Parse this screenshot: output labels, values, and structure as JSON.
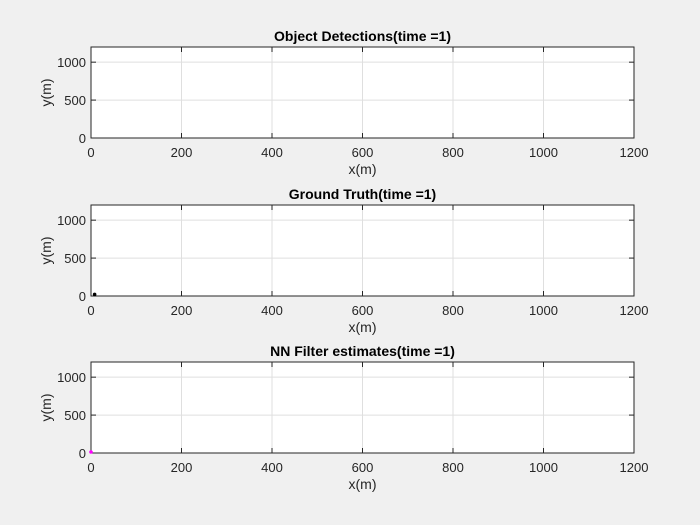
{
  "chart_data": [
    {
      "type": "scatter",
      "title": "Object Detections(time =1)",
      "xlabel": "x(m)",
      "ylabel": "y(m)",
      "xlim": [
        0,
        1200
      ],
      "ylim": [
        0,
        1200
      ],
      "xticks": [
        0,
        200,
        400,
        600,
        800,
        1000,
        1200
      ],
      "yticks": [
        0,
        500,
        1000
      ],
      "grid": true,
      "series": [
        {
          "color": "#000000",
          "points": []
        }
      ]
    },
    {
      "type": "scatter",
      "title": "Ground Truth(time =1)",
      "xlabel": "x(m)",
      "ylabel": "y(m)",
      "xlim": [
        0,
        1200
      ],
      "ylim": [
        0,
        1200
      ],
      "xticks": [
        0,
        200,
        400,
        600,
        800,
        1000,
        1200
      ],
      "yticks": [
        0,
        500,
        1000
      ],
      "grid": true,
      "series": [
        {
          "color": "#000000",
          "points": [
            [
              8,
              20
            ]
          ]
        }
      ]
    },
    {
      "type": "scatter",
      "title": "NN Filter estimates(time =1)",
      "xlabel": "x(m)",
      "ylabel": "y(m)",
      "xlim": [
        0,
        1200
      ],
      "ylim": [
        0,
        1200
      ],
      "xticks": [
        0,
        200,
        400,
        600,
        800,
        1000,
        1200
      ],
      "yticks": [
        0,
        500,
        1000
      ],
      "grid": true,
      "series": [
        {
          "color": "#ff00ff",
          "points": [
            [
              0,
              0
            ]
          ]
        }
      ]
    }
  ]
}
